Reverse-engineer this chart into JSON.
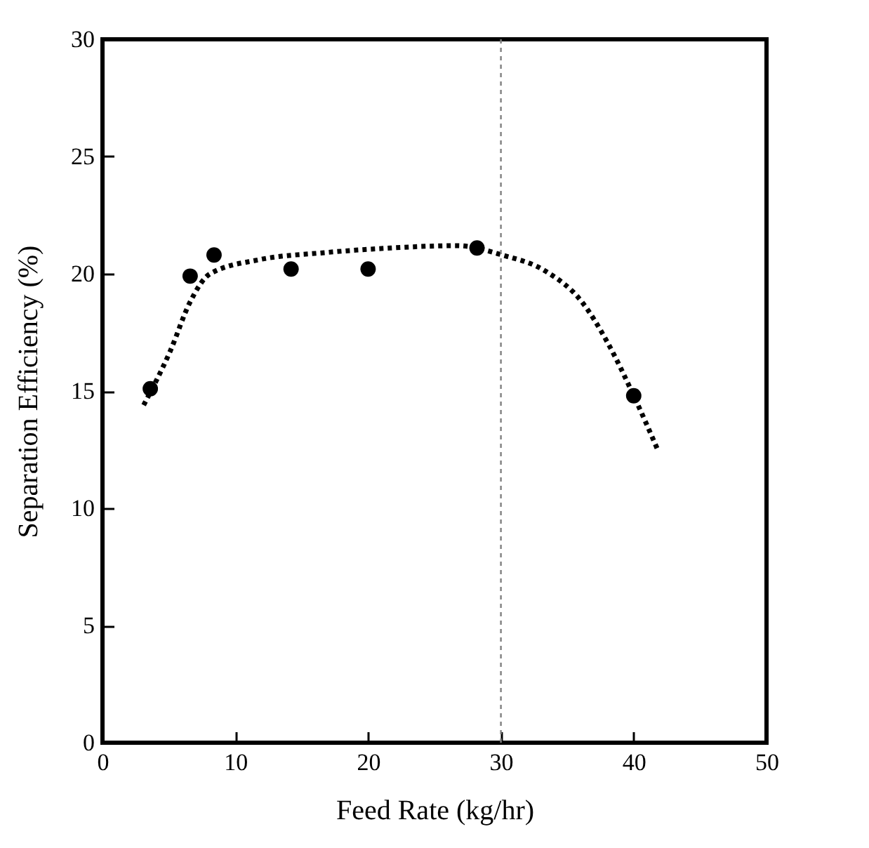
{
  "chart_data": {
    "type": "scatter",
    "xlabel": "Feed Rate (kg/hr)",
    "ylabel": "Separation Efficiency (%)",
    "xlim": [
      0,
      50
    ],
    "xticks": [
      0,
      10,
      20,
      30,
      40,
      50
    ],
    "ylim": [
      0,
      30
    ],
    "yticks": [
      0,
      5,
      10,
      15,
      20,
      25,
      30
    ],
    "series": [
      {
        "type": "scatter",
        "marker": "circle",
        "color": "#000000",
        "x": [
          3.6,
          6.6,
          8.4,
          14.2,
          20.0,
          28.2,
          40.0
        ],
        "values": [
          15.1,
          19.9,
          20.8,
          20.2,
          20.2,
          21.1,
          14.8
        ]
      },
      {
        "type": "line",
        "marker": "none",
        "line_style": "dotted",
        "color": "#000000",
        "x": [
          3.1,
          5.1,
          6.6,
          8.1,
          11.8,
          16.7,
          21.7,
          26.7,
          30.1,
          33.4,
          36.1,
          38.0,
          40.0,
          41.8
        ],
        "values": [
          14.4,
          16.7,
          18.8,
          20.0,
          20.6,
          20.9,
          21.1,
          21.2,
          20.8,
          20.1,
          18.8,
          17.1,
          14.8,
          12.5
        ]
      }
    ],
    "ref_lines": [
      {
        "axis": "x",
        "value": 30,
        "color": "#808080",
        "line_style": "dotted"
      }
    ]
  }
}
